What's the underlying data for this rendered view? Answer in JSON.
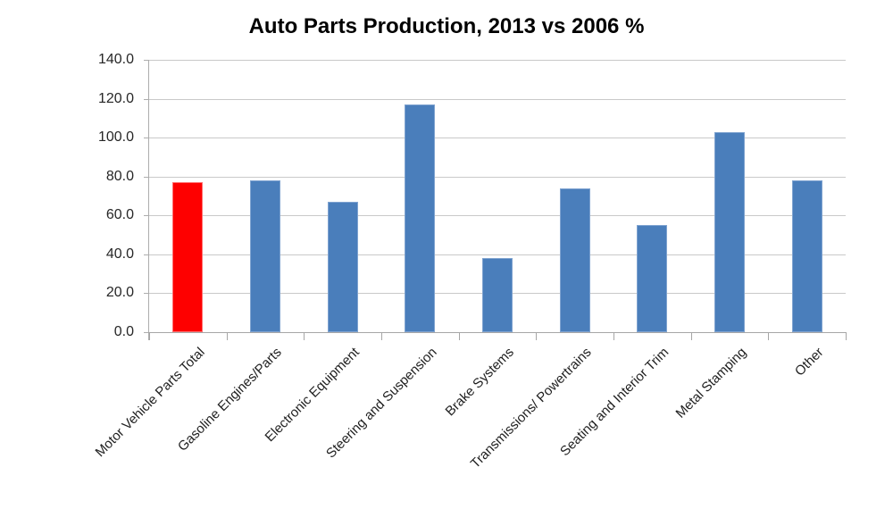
{
  "title": "Auto Parts Production, 2013 vs 2006 %",
  "chart_data": {
    "type": "bar",
    "title": "Auto Parts Production, 2013 vs 2006 %",
    "categories": [
      "Motor Vehicle Parts Total",
      "Gasoline Engines/Parts",
      "Electronic Equipment",
      "Steering and Suspension",
      "Brake Systems",
      "Transmissions/ Powertrains",
      "Seating and Interior Trim",
      "Metal Stamping",
      "Other"
    ],
    "values": [
      77,
      78,
      67,
      117,
      38,
      74,
      55,
      103,
      78
    ],
    "highlight_index": 0,
    "highlight_color": "#FE0000",
    "bar_color": "#4A7EBB",
    "xlabel": "",
    "ylabel": "",
    "ylim": [
      0,
      140
    ],
    "ytick_step": 20,
    "ytick_labels": [
      "0.0",
      "20.0",
      "40.0",
      "60.0",
      "80.0",
      "100.0",
      "120.0",
      "140.0"
    ],
    "grid": true,
    "legend_position": "none",
    "background": "#FFFFFF",
    "grid_color": "#C9C9C9",
    "axis_color": "#A6A6A6",
    "text_color": "#262626"
  }
}
